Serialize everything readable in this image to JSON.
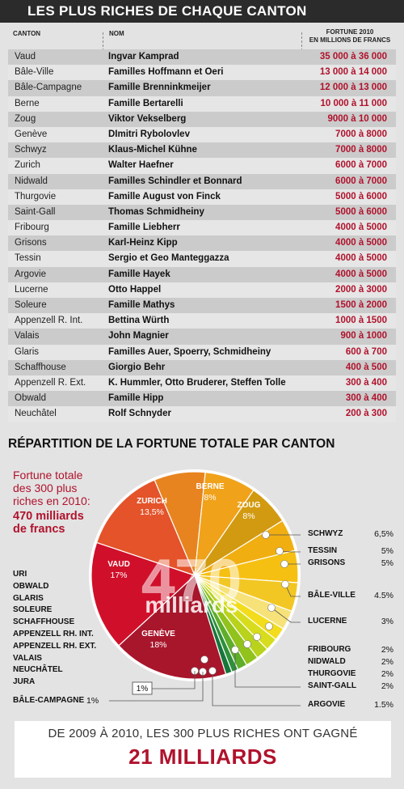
{
  "header": {
    "title": "LES PLUS RICHES DE CHAQUE CANTON"
  },
  "table": {
    "col_canton": "CANTON",
    "col_nom": "NOM",
    "col_fortune_1": "FORTUNE 2010",
    "col_fortune_2": "EN MILLIONS DE FRANCS",
    "rows": [
      {
        "canton": "Vaud",
        "nom": "Ingvar Kamprad",
        "fortune": "35 000 à 36 000"
      },
      {
        "canton": "Bâle-Ville",
        "nom": "Familles Hoffmann et Oeri",
        "fortune": "13 000 à 14 000"
      },
      {
        "canton": "Bâle-Campagne",
        "nom": "Famille Brenninkmeijer",
        "fortune": "12 000 à 13 000"
      },
      {
        "canton": "Berne",
        "nom": "Famille Bertarelli",
        "fortune": "10 000 à 11 000"
      },
      {
        "canton": "Zoug",
        "nom": "Viktor Vekselberg",
        "fortune": "9000 à 10 000"
      },
      {
        "canton": "Genève",
        "nom": "DImitri Rybolovlev",
        "fortune": "7000 à 8000"
      },
      {
        "canton": "Schwyz",
        "nom": "Klaus-Michel Kühne",
        "fortune": "7000 à 8000"
      },
      {
        "canton": "Zurich",
        "nom": "Walter Haefner",
        "fortune": "6000 à 7000"
      },
      {
        "canton": "Nidwald",
        "nom": "Familles Schindler et Bonnard",
        "fortune": "6000 à 7000"
      },
      {
        "canton": "Thurgovie",
        "nom": "Famille August von Finck",
        "fortune": "5000 à 6000"
      },
      {
        "canton": "Saint-Gall",
        "nom": "Thomas Schmidheiny",
        "fortune": "5000 à 6000"
      },
      {
        "canton": "Fribourg",
        "nom": "Famille Liebherr",
        "fortune": "4000 à 5000"
      },
      {
        "canton": "Grisons",
        "nom": "Karl-Heinz Kipp",
        "fortune": "4000 à 5000"
      },
      {
        "canton": "Tessin",
        "nom": "Sergio et Geo Manteggazza",
        "fortune": "4000 à 5000"
      },
      {
        "canton": "Argovie",
        "nom": "Famille Hayek",
        "fortune": "4000 à 5000"
      },
      {
        "canton": "Lucerne",
        "nom": "Otto Happel",
        "fortune": "2000 à 3000"
      },
      {
        "canton": "Soleure",
        "nom": "Famille Mathys",
        "fortune": "1500 à 2000"
      },
      {
        "canton": "Appenzell R. Int.",
        "nom": "Bettina Würth",
        "fortune": "1000 à 1500"
      },
      {
        "canton": "Valais",
        "nom": "John Magnier",
        "fortune": "900 à 1000"
      },
      {
        "canton": "Glaris",
        "nom": "Familles Auer, Spoerry, Schmidheiny",
        "fortune": "600 à 700"
      },
      {
        "canton": "Schaffhouse",
        "nom": "Giorgio Behr",
        "fortune": "400 à 500"
      },
      {
        "canton": "Appenzell R. Ext.",
        "nom": "K. Hummler, Otto Bruderer, Steffen Tolle",
        "fortune": "300 à 400"
      },
      {
        "canton": "Obwald",
        "nom": "Famille Hipp",
        "fortune": "300 à 400"
      },
      {
        "canton": "Neuchâtel",
        "nom": "Rolf Schnyder",
        "fortune": "200 à 300"
      }
    ]
  },
  "section2": {
    "title": "RÉPARTITION DE LA FORTUNE TOTALE PAR CANTON",
    "intro_1": "Fortune totale",
    "intro_2": "des 300 plus",
    "intro_3": "riches en 2010:",
    "intro_4": "470 milliards",
    "intro_5": "de francs",
    "center_number": "470",
    "center_word": "milliards",
    "left_list": [
      "URI",
      "OBWALD",
      "GLARIS",
      "SOLEURE",
      "SCHAFFHOUSE",
      "APPENZELL RH. INT.",
      "APPENZELL RH. EXT.",
      "VALAIS",
      "NEUCHÂTEL",
      "JURA"
    ],
    "small_box": "1%",
    "bale_campagne_label": "BÂLE-CAMPAGNE",
    "bale_campagne_pct": "1%"
  },
  "chart_data": {
    "type": "pie",
    "title": "RÉPARTITION DE LA FORTUNE TOTALE PAR CANTON",
    "slices": [
      {
        "label": "BERNE",
        "pct_text": "8%",
        "value": 8,
        "color": "#e8841f"
      },
      {
        "label": "ZOUG",
        "pct_text": "8%",
        "value": 8,
        "color": "#f0a21a"
      },
      {
        "label": "SCHWYZ",
        "pct_text": "6,5%",
        "value": 6.5,
        "color": "#d29a10"
      },
      {
        "label": "TESSIN",
        "pct_text": "5%",
        "value": 5,
        "color": "#f0ae10"
      },
      {
        "label": "GRISONS",
        "pct_text": "5%",
        "value": 5,
        "color": "#f6c012"
      },
      {
        "label": "BÂLE-VILLE",
        "pct_text": "4.5%",
        "value": 4.5,
        "color": "#f2c724"
      },
      {
        "label": "LUCERNE",
        "pct_text": "3%",
        "value": 3,
        "color": "#f7e27a"
      },
      {
        "label": "FRIBOURG",
        "pct_text": "2%",
        "value": 2,
        "color": "#f3dc1c"
      },
      {
        "label": "NIDWALD",
        "pct_text": "2%",
        "value": 2,
        "color": "#d7dd1c"
      },
      {
        "label": "THURGOVIE",
        "pct_text": "2%",
        "value": 2,
        "color": "#b9d21c"
      },
      {
        "label": "SAINT-GALL",
        "pct_text": "2%",
        "value": 2,
        "color": "#92c21c"
      },
      {
        "label": "ARGOVIE",
        "pct_text": "1.5%",
        "value": 1.5,
        "color": "#5fae2a"
      },
      {
        "label": "",
        "pct_text": "1%",
        "value": 1,
        "color": "#2f8f3a"
      },
      {
        "label": "BÂLE-CAMPAGNE",
        "pct_text": "1%",
        "value": 1,
        "color": "#17763a"
      },
      {
        "label": "GENÈVE",
        "pct_text": "18%",
        "value": 18,
        "color": "#a8162c"
      },
      {
        "label": "VAUD",
        "pct_text": "17%",
        "value": 17,
        "color": "#d0102a"
      },
      {
        "label": "ZURICH",
        "pct_text": "13,5%",
        "value": 13.5,
        "color": "#e4532a"
      }
    ]
  },
  "footer": {
    "line1": "DE 2009 À 2010, LES 300 PLUS RICHES ONT GAGNÉ",
    "line2": "21 MILLIARDS"
  }
}
